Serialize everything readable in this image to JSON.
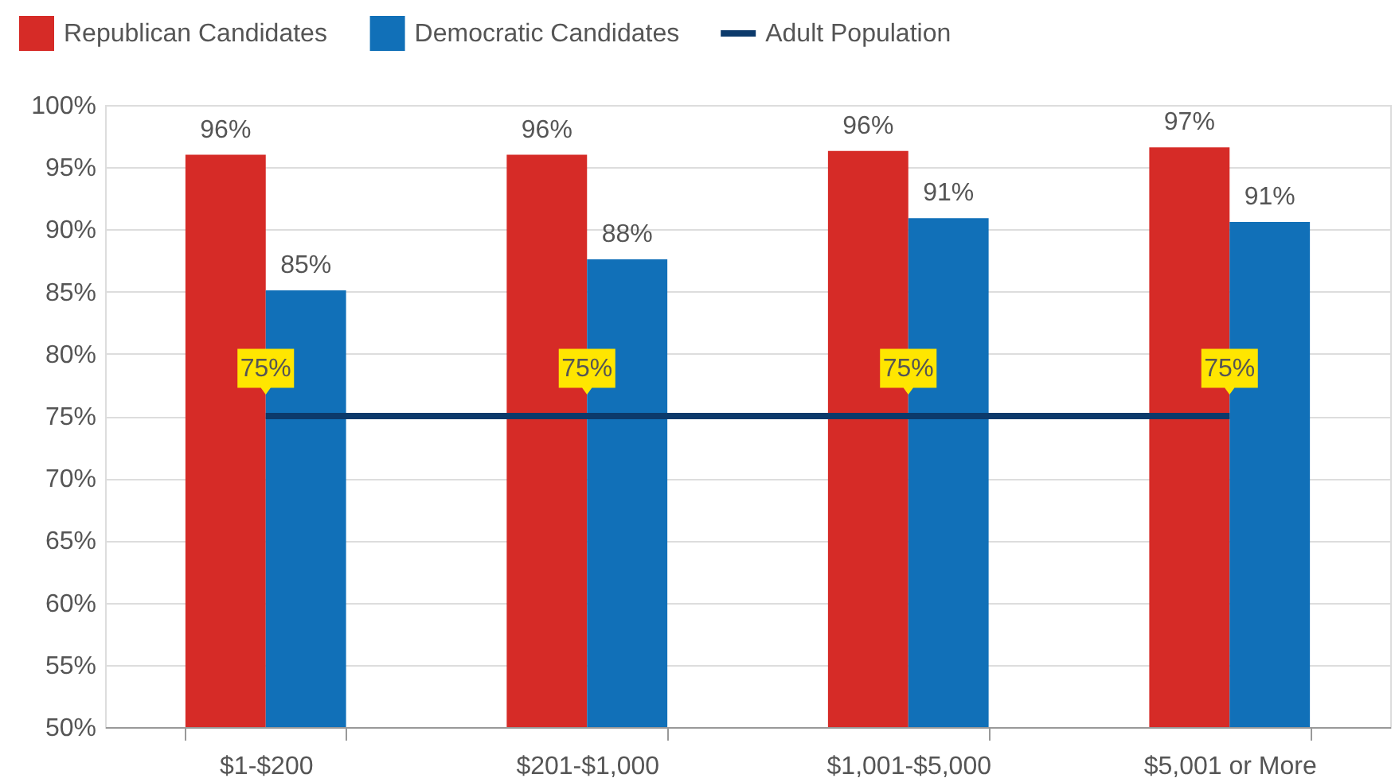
{
  "chart_data": {
    "type": "bar",
    "categories": [
      "$1-$200",
      "$201-$1,000",
      "$1,001-$5,000",
      "$5,001 or More"
    ],
    "series": [
      {
        "name": "Republican Candidates",
        "color": "#d62b27",
        "values": [
          96.0,
          96.0,
          96.3,
          96.6
        ],
        "value_labels": [
          "96%",
          "96%",
          "96%",
          "97%"
        ]
      },
      {
        "name": "Democratic Candidates",
        "color": "#1170b8",
        "values": [
          85.1,
          87.6,
          90.9,
          90.6
        ],
        "value_labels": [
          "85%",
          "88%",
          "91%",
          "91%"
        ]
      },
      {
        "name": "Adult Population",
        "type": "line",
        "color": "#0c3a6b",
        "values": [
          75,
          75,
          75,
          75
        ],
        "value_labels": [
          "75%",
          "75%",
          "75%",
          "75%"
        ]
      }
    ],
    "ylim": [
      50,
      100
    ],
    "yticks": [
      {
        "value": 50,
        "label": "50%"
      },
      {
        "value": 55,
        "label": "55%"
      },
      {
        "value": 60,
        "label": "60%"
      },
      {
        "value": 65,
        "label": "65%"
      },
      {
        "value": 70,
        "label": "70%"
      },
      {
        "value": 75,
        "label": "75%"
      },
      {
        "value": 80,
        "label": "80%"
      },
      {
        "value": 85,
        "label": "85%"
      },
      {
        "value": 90,
        "label": "90%"
      },
      {
        "value": 95,
        "label": "95%"
      },
      {
        "value": 100,
        "label": "100%"
      }
    ],
    "grid": "y",
    "legend": "top left"
  }
}
